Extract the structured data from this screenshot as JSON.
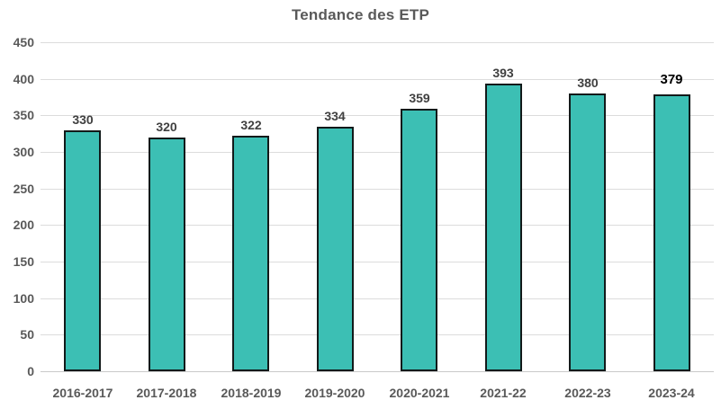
{
  "chart_data": {
    "type": "bar",
    "title": "Tendance des ETP",
    "xlabel": "",
    "ylabel": "",
    "categories": [
      "2016-2017",
      "2017-2018",
      "2018-2019",
      "2019-2020",
      "2020-2021",
      "2021-22",
      "2022-23",
      "2023-24"
    ],
    "values": [
      330,
      320,
      322,
      334,
      359,
      393,
      380,
      379
    ],
    "data_labels": [
      "330",
      "320",
      "322",
      "334",
      "359",
      "393",
      "380",
      "379"
    ],
    "emphasized_label_index": 7,
    "ylim": [
      0,
      450
    ],
    "y_ticks": [
      450,
      400,
      350,
      300,
      250,
      200,
      150,
      100,
      50,
      0
    ],
    "grid": "horizontal",
    "legend": "none",
    "colors": {
      "bar_fill": "#3CBFB4",
      "bar_border": "#121A1A",
      "gridline": "#DCDCDC",
      "axis_line": "#C9C9C9",
      "axis_text": "#595959",
      "title_text": "#595959",
      "data_label": "#404040",
      "emphasized_data_label": "#000000",
      "background": "#FFFFFF"
    }
  }
}
